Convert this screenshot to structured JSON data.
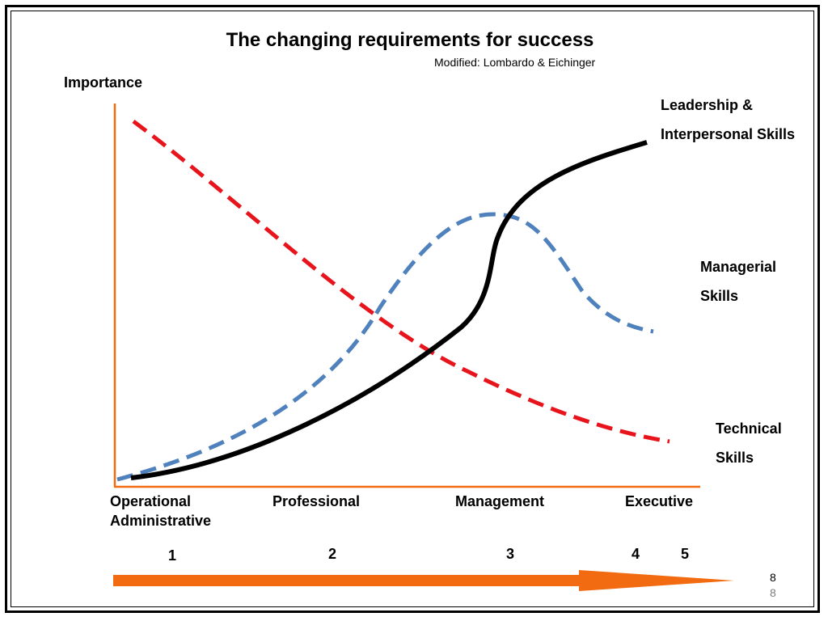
{
  "title": "The changing requirements for success",
  "subtitle": "Modified: Lombardo & Eichinger",
  "y_axis_label": "Importance",
  "curves": {
    "leadership": {
      "label_line1": "Leadership &",
      "label_line2": "Interpersonal Skills",
      "color": "#000000",
      "style": "solid"
    },
    "managerial": {
      "label_line1": "Managerial",
      "label_line2": "Skills",
      "color": "#4F81BD",
      "style": "dashed"
    },
    "technical": {
      "label_line1": "Technical",
      "label_line2": "Skills",
      "color": "#E8141C",
      "style": "dashed"
    }
  },
  "x_categories": [
    "Operational",
    "Administrative",
    "Professional",
    "Management",
    "Executive"
  ],
  "levels": [
    "1",
    "2",
    "3",
    "4",
    "5"
  ],
  "arrow_color": "#F26B10",
  "axis_color": "#F26B10",
  "page_number": "8",
  "page_number_repeat": "8"
}
